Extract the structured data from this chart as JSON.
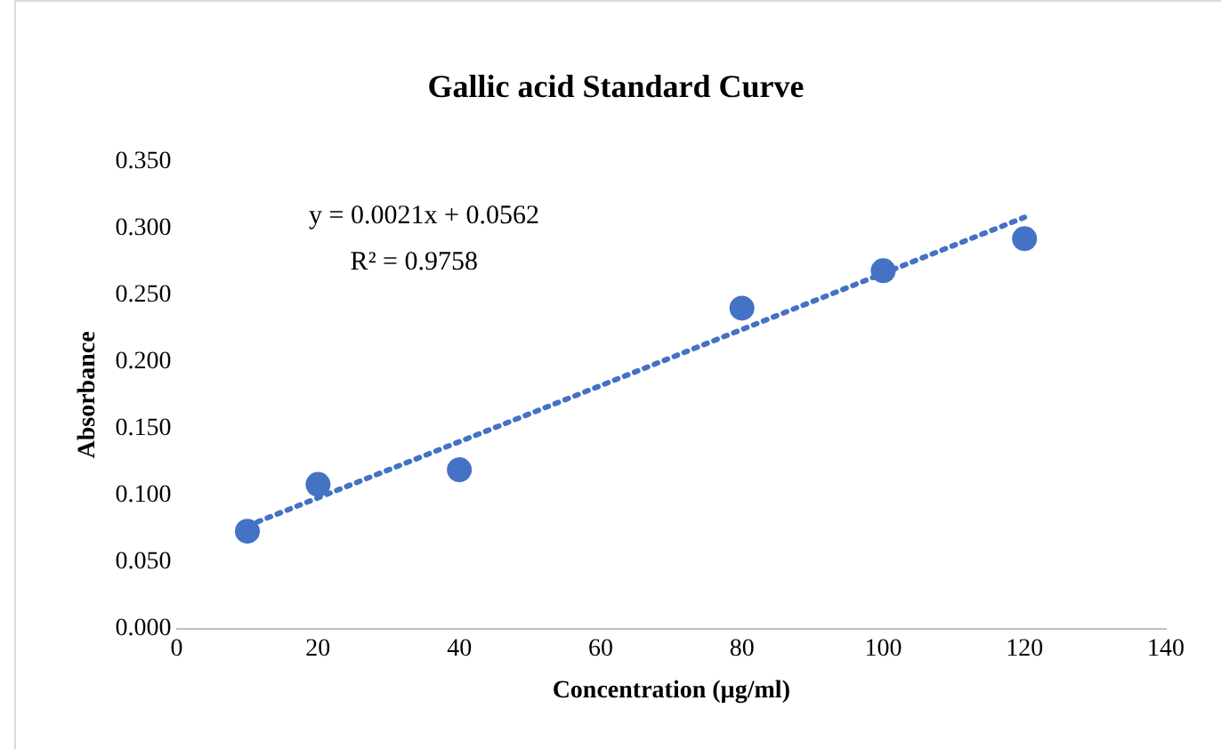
{
  "chart_data": {
    "type": "scatter",
    "title": "Gallic acid Standard Curve",
    "xlabel": "Concentration (µg/ml)",
    "ylabel": "Absorbance",
    "annotations": [
      "y = 0.0021x + 0.0562",
      "R² = 0.9758"
    ],
    "series": [
      {
        "type": "scatter",
        "color": "#4472c4",
        "marker": "circle",
        "x": [
          10,
          20,
          40,
          80,
          100,
          120
        ],
        "values": [
          0.073,
          0.108,
          0.119,
          0.24,
          0.268,
          0.292
        ]
      },
      {
        "type": "line",
        "color": "#4472c4",
        "marker": "none",
        "line_style": "dotted",
        "x": [
          10,
          120
        ],
        "values": [
          0.077,
          0.308
        ]
      }
    ],
    "xlim": [
      0,
      140
    ],
    "xticks": [
      0,
      20,
      40,
      60,
      80,
      100,
      120,
      140
    ],
    "ylim": [
      0,
      0.35
    ],
    "yticks": [
      {
        "value": 0,
        "label": "0.000"
      },
      {
        "value": 0.05,
        "label": "0.050"
      },
      {
        "value": 0.1,
        "label": "0.100"
      },
      {
        "value": 0.15,
        "label": "0.150"
      },
      {
        "value": 0.2,
        "label": "0.200"
      },
      {
        "value": 0.25,
        "label": "0.250"
      },
      {
        "value": 0.3,
        "label": "0.300"
      },
      {
        "value": 0.35,
        "label": "0.350"
      }
    ],
    "grid": false,
    "legend": false
  }
}
